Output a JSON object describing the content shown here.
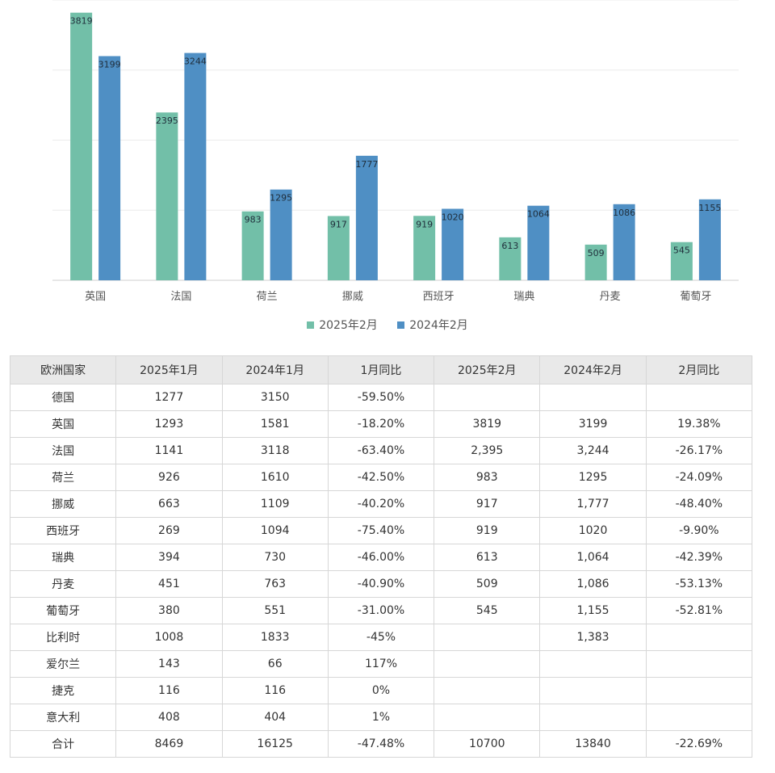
{
  "chart_data": {
    "type": "bar",
    "categories": [
      "英国",
      "法国",
      "荷兰",
      "挪威",
      "西班牙",
      "瑞典",
      "丹麦",
      "葡萄牙"
    ],
    "series": [
      {
        "name": "2025年2月",
        "values": [
          3819,
          2395,
          983,
          917,
          919,
          613,
          509,
          545
        ],
        "color": "#72bfa8"
      },
      {
        "name": "2024年2月",
        "values": [
          3199,
          3244,
          1295,
          1777,
          1020,
          1064,
          1086,
          1155
        ],
        "color": "#4f8fc4"
      }
    ],
    "title": "",
    "xlabel": "",
    "ylabel": "",
    "ylim": [
      0,
      4000
    ],
    "grid": true,
    "legend": "bottom"
  },
  "table": {
    "headers": [
      "欧洲国家",
      "2025年1月",
      "2024年1月",
      "1月同比",
      "2025年2月",
      "2024年2月",
      "2月同比"
    ],
    "rows": [
      [
        "德国",
        "1277",
        "3150",
        "-59.50%",
        "",
        "",
        ""
      ],
      [
        "英国",
        "1293",
        "1581",
        "-18.20%",
        "3819",
        "3199",
        "19.38%"
      ],
      [
        "法国",
        "1141",
        "3118",
        "-63.40%",
        "2,395",
        "3,244",
        "-26.17%"
      ],
      [
        "荷兰",
        "926",
        "1610",
        "-42.50%",
        "983",
        "1295",
        "-24.09%"
      ],
      [
        "挪威",
        "663",
        "1109",
        "-40.20%",
        "917",
        "1,777",
        "-48.40%"
      ],
      [
        "西班牙",
        "269",
        "1094",
        "-75.40%",
        "919",
        "1020",
        "-9.90%"
      ],
      [
        "瑞典",
        "394",
        "730",
        "-46.00%",
        "613",
        "1,064",
        "-42.39%"
      ],
      [
        "丹麦",
        "451",
        "763",
        "-40.90%",
        "509",
        "1,086",
        "-53.13%"
      ],
      [
        "葡萄牙",
        "380",
        "551",
        "-31.00%",
        "545",
        "1,155",
        "-52.81%"
      ],
      [
        "比利时",
        "1008",
        "1833",
        "-45%",
        "",
        "1,383",
        ""
      ],
      [
        "爱尔兰",
        "143",
        "66",
        "117%",
        "",
        "",
        ""
      ],
      [
        "捷克",
        "116",
        "116",
        "0%",
        "",
        "",
        ""
      ],
      [
        "意大利",
        "408",
        "404",
        "1%",
        "",
        "",
        ""
      ],
      [
        "合计",
        "8469",
        "16125",
        "-47.48%",
        "10700",
        "13840",
        "-22.69%"
      ]
    ]
  }
}
